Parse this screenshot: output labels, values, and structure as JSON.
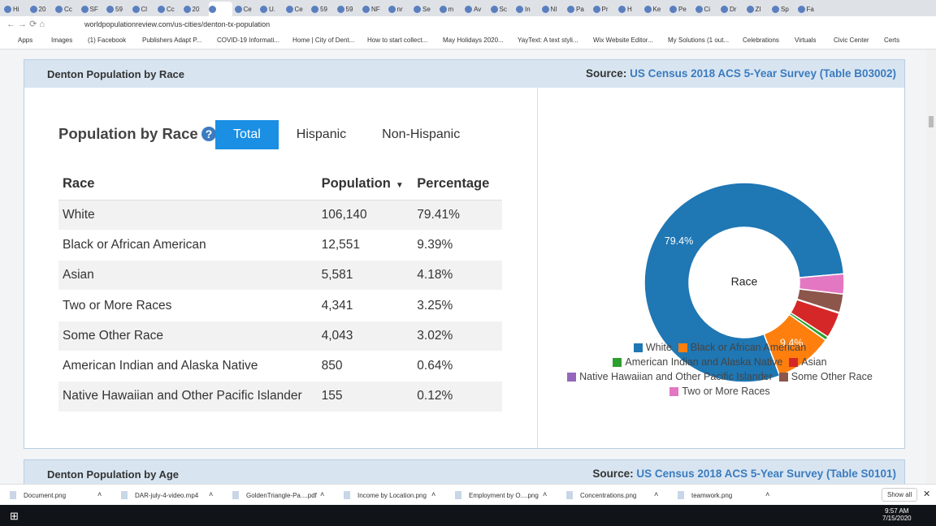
{
  "browser": {
    "tabs": [
      "Hi",
      "20",
      "Cc",
      "SF",
      "59",
      "Cl",
      "Cc",
      "20",
      "",
      "Ce",
      "U.",
      "Ce",
      "59",
      "59",
      "NF",
      "nr",
      "Se",
      "m",
      "Av",
      "Sc",
      "In",
      "NI",
      "Pa",
      "Pr",
      "H",
      "Ke",
      "Pe",
      "Ci",
      "Dr",
      "ZI",
      "Sp",
      "Fa"
    ],
    "active_tab": 8,
    "url": "worldpopulationreview.com/us-cities/denton-tx-population",
    "bookmarks": [
      "Apps",
      "Images",
      "(1) Facebook",
      "Publishers Adapt P...",
      "COVID-19 Informati...",
      "Home | City of Dent...",
      "How to start collect...",
      "May Holidays 2020...",
      "YayText: A text styli...",
      "Wix Website Editor...",
      "My Solutions (1 out...",
      "Celebrations",
      "Virtuals",
      "Civic Center",
      "Certs"
    ]
  },
  "section": {
    "title": "Denton Population by Race",
    "source_label": "Source:",
    "source_link": "US Census 2018 ACS 5-Year Survey (Table B03002)"
  },
  "widget": {
    "heading": "Population by Race",
    "help": "?",
    "tabs": [
      "Total",
      "Hispanic",
      "Non-Hispanic"
    ],
    "active_tab": 0
  },
  "table": {
    "columns": [
      "Race",
      "Population",
      "Percentage"
    ],
    "rows": [
      [
        "White",
        "106,140",
        "79.41%"
      ],
      [
        "Black or African American",
        "12,551",
        "9.39%"
      ],
      [
        "Asian",
        "5,581",
        "4.18%"
      ],
      [
        "Two or More Races",
        "4,341",
        "3.25%"
      ],
      [
        "Some Other Race",
        "4,043",
        "3.02%"
      ],
      [
        "American Indian and Alaska Native",
        "850",
        "0.64%"
      ],
      [
        "Native Hawaiian and Other Pacific Islander",
        "155",
        "0.12%"
      ]
    ]
  },
  "chart_data": {
    "type": "donut",
    "center_label": "Race",
    "categories": [
      "White",
      "Black or African American",
      "American Indian and Alaska Native",
      "Asian",
      "Native Hawaiian and Other Pacific Islander",
      "Some Other Race",
      "Two or More Races"
    ],
    "values": [
      79.41,
      9.39,
      0.64,
      4.18,
      0.12,
      3.02,
      3.25
    ],
    "value_labels": [
      "79.4%",
      "9.4%",
      null,
      null,
      null,
      null,
      null
    ],
    "colors": [
      "#1f77b4",
      "#ff7f0e",
      "#2ca02c",
      "#d62728",
      "#9467bd",
      "#8c564b",
      "#e377c2"
    ]
  },
  "next_section": {
    "title": "Denton Population by Age",
    "source_label": "Source:",
    "source_link": "US Census 2018 ACS 5-Year Survey (Table S0101)"
  },
  "downloads": {
    "items": [
      "Document.png",
      "DAR-july-4-video.mp4",
      "GoldenTriangle-Pa....pdf",
      "Income by Location.png",
      "Employment by O....png",
      "Concentrations.png",
      "teamwork.png"
    ],
    "show_all": "Show all"
  },
  "taskbar": {
    "time": "9:57 AM",
    "date": "7/15/2020"
  }
}
